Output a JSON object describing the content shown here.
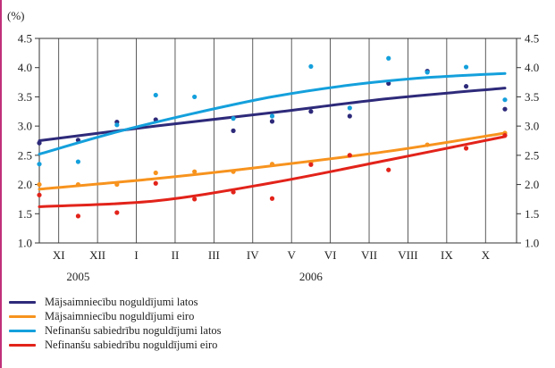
{
  "chart_data": {
    "type": "line",
    "unit_label": "(%)",
    "yticks": [
      "1.0",
      "1.5",
      "2.0",
      "2.5",
      "3.0",
      "3.5",
      "4.0",
      "4.5"
    ],
    "ylim": [
      1.0,
      4.5
    ],
    "categories": [
      "XI",
      "XII",
      "I",
      "II",
      "III",
      "IV",
      "V",
      "VI",
      "VII",
      "VIII",
      "IX",
      "X"
    ],
    "year_labels": [
      {
        "label": "2005",
        "at": 1.0
      },
      {
        "label": "2006",
        "at": 7.0
      }
    ],
    "grid": "vertical",
    "legend_position": "bottom-left",
    "frame_color": "#c0307a",
    "series": [
      {
        "name": "Mājsaimniecību noguldījumi latos",
        "color": "#2e2a7a",
        "trend": [
          [
            0,
            2.75
          ],
          [
            3,
            3.0
          ],
          [
            6,
            3.23
          ],
          [
            9,
            3.47
          ],
          [
            12,
            3.65
          ]
        ],
        "points": [
          [
            0,
            2.71
          ],
          [
            1,
            2.76
          ],
          [
            2,
            3.07
          ],
          [
            3,
            3.11
          ],
          [
            5,
            2.92
          ],
          [
            6,
            3.08
          ],
          [
            7,
            3.25
          ],
          [
            8,
            3.17
          ],
          [
            9,
            3.73
          ],
          [
            10,
            3.94
          ],
          [
            11,
            3.68
          ],
          [
            12,
            3.29
          ]
        ]
      },
      {
        "name": "Mājsaimniecību noguldījumi eiro",
        "color": "#f7931e",
        "trend": [
          [
            0,
            1.92
          ],
          [
            3,
            2.1
          ],
          [
            6,
            2.32
          ],
          [
            9,
            2.57
          ],
          [
            12,
            2.88
          ]
        ],
        "points": [
          [
            0,
            2.0
          ],
          [
            1,
            2.0
          ],
          [
            2,
            2.0
          ],
          [
            3,
            2.2
          ],
          [
            4,
            2.22
          ],
          [
            5,
            2.22
          ],
          [
            6,
            2.35
          ],
          [
            7,
            2.38
          ],
          [
            8,
            2.5
          ],
          [
            10,
            2.68
          ],
          [
            12,
            2.88
          ]
        ]
      },
      {
        "name": "Nefinanšu sabiedrību noguldījumi latos",
        "color": "#14a0dc",
        "trend": [
          [
            0,
            2.52
          ],
          [
            2,
            2.9
          ],
          [
            4,
            3.22
          ],
          [
            6,
            3.5
          ],
          [
            8,
            3.7
          ],
          [
            10,
            3.83
          ],
          [
            12,
            3.9
          ]
        ],
        "points": [
          [
            0,
            2.35
          ],
          [
            1,
            2.39
          ],
          [
            2,
            3.02
          ],
          [
            3,
            3.53
          ],
          [
            4,
            3.5
          ],
          [
            5,
            3.13
          ],
          [
            6,
            3.17
          ],
          [
            7,
            4.02
          ],
          [
            8,
            3.31
          ],
          [
            9,
            4.16
          ],
          [
            10,
            3.92
          ],
          [
            11,
            4.01
          ],
          [
            12,
            3.45
          ]
        ]
      },
      {
        "name": "Nefinanšu sabiedrību noguldījumi eiro",
        "color": "#e2231a",
        "trend": [
          [
            0,
            1.62
          ],
          [
            3,
            1.72
          ],
          [
            6,
            2.03
          ],
          [
            9,
            2.42
          ],
          [
            12,
            2.82
          ]
        ],
        "points": [
          [
            0,
            1.82
          ],
          [
            1,
            1.46
          ],
          [
            2,
            1.52
          ],
          [
            3,
            2.02
          ],
          [
            4,
            1.75
          ],
          [
            5,
            1.87
          ],
          [
            6,
            1.76
          ],
          [
            7,
            2.34
          ],
          [
            8,
            2.5
          ],
          [
            9,
            2.25
          ],
          [
            11,
            2.62
          ],
          [
            12,
            2.84
          ]
        ]
      }
    ]
  }
}
